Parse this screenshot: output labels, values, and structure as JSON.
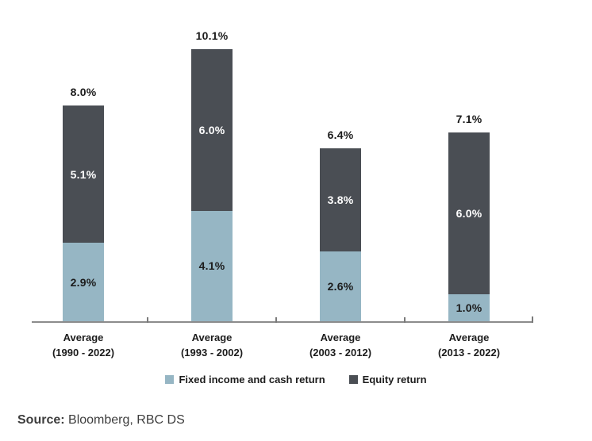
{
  "chart_data": {
    "type": "bar",
    "stacked": true,
    "title": "",
    "xlabel": "",
    "ylabel": "",
    "ylim": [
      0,
      10.1
    ],
    "grid": false,
    "legend_position": "bottom",
    "axis_color": "#8c8c8c",
    "categories": [
      {
        "line1": "Average",
        "line2": "(1990 - 2022)"
      },
      {
        "line1": "Average",
        "line2": "(1993 - 2002)"
      },
      {
        "line1": "Average",
        "line2": "(2003 - 2012)"
      },
      {
        "line1": "Average",
        "line2": "(2013 - 2022)"
      }
    ],
    "series": [
      {
        "name": "Fixed income and cash return",
        "color": "#96b6c4",
        "label_color": "#1c1c1c",
        "values": [
          2.9,
          4.1,
          2.6,
          1.0
        ],
        "labels": [
          "2.9%",
          "4.1%",
          "2.6%",
          "1.0%"
        ]
      },
      {
        "name": "Equity return",
        "color": "#4a4e54",
        "label_color": "#ffffff",
        "values": [
          5.1,
          6.0,
          3.8,
          6.0
        ],
        "labels": [
          "5.1%",
          "6.0%",
          "3.8%",
          "6.0%"
        ]
      }
    ],
    "totals": [
      8.0,
      10.1,
      6.4,
      7.1
    ],
    "total_labels": [
      "8.0%",
      "10.1%",
      "6.4%",
      "7.1%"
    ]
  },
  "source": {
    "prefix": "Source:",
    "text": "Bloomberg, RBC DS"
  }
}
